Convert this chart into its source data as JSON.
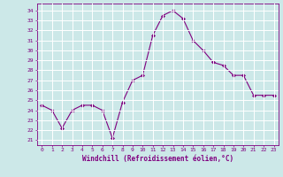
{
  "x": [
    0,
    1,
    2,
    3,
    4,
    5,
    6,
    7,
    8,
    9,
    10,
    11,
    12,
    13,
    14,
    15,
    16,
    17,
    18,
    19,
    20,
    21,
    22,
    23
  ],
  "y": [
    24.5,
    24.0,
    22.2,
    24.0,
    24.5,
    24.5,
    24.0,
    21.2,
    24.8,
    27.0,
    27.5,
    31.5,
    33.5,
    34.0,
    33.2,
    31.0,
    30.0,
    28.8,
    28.5,
    27.5,
    27.5,
    25.5,
    25.5,
    25.5
  ],
  "line_color": "#800080",
  "marker": "D",
  "marker_size": 2.0,
  "bg_color": "#cce8e8",
  "grid_color": "#b0d0d0",
  "xlabel": "Windchill (Refroidissement éolien,°C)",
  "ylabel_ticks": [
    21,
    22,
    23,
    24,
    25,
    26,
    27,
    28,
    29,
    30,
    31,
    32,
    33,
    34
  ],
  "ylim": [
    20.5,
    34.7
  ],
  "xlim": [
    -0.5,
    23.5
  ]
}
